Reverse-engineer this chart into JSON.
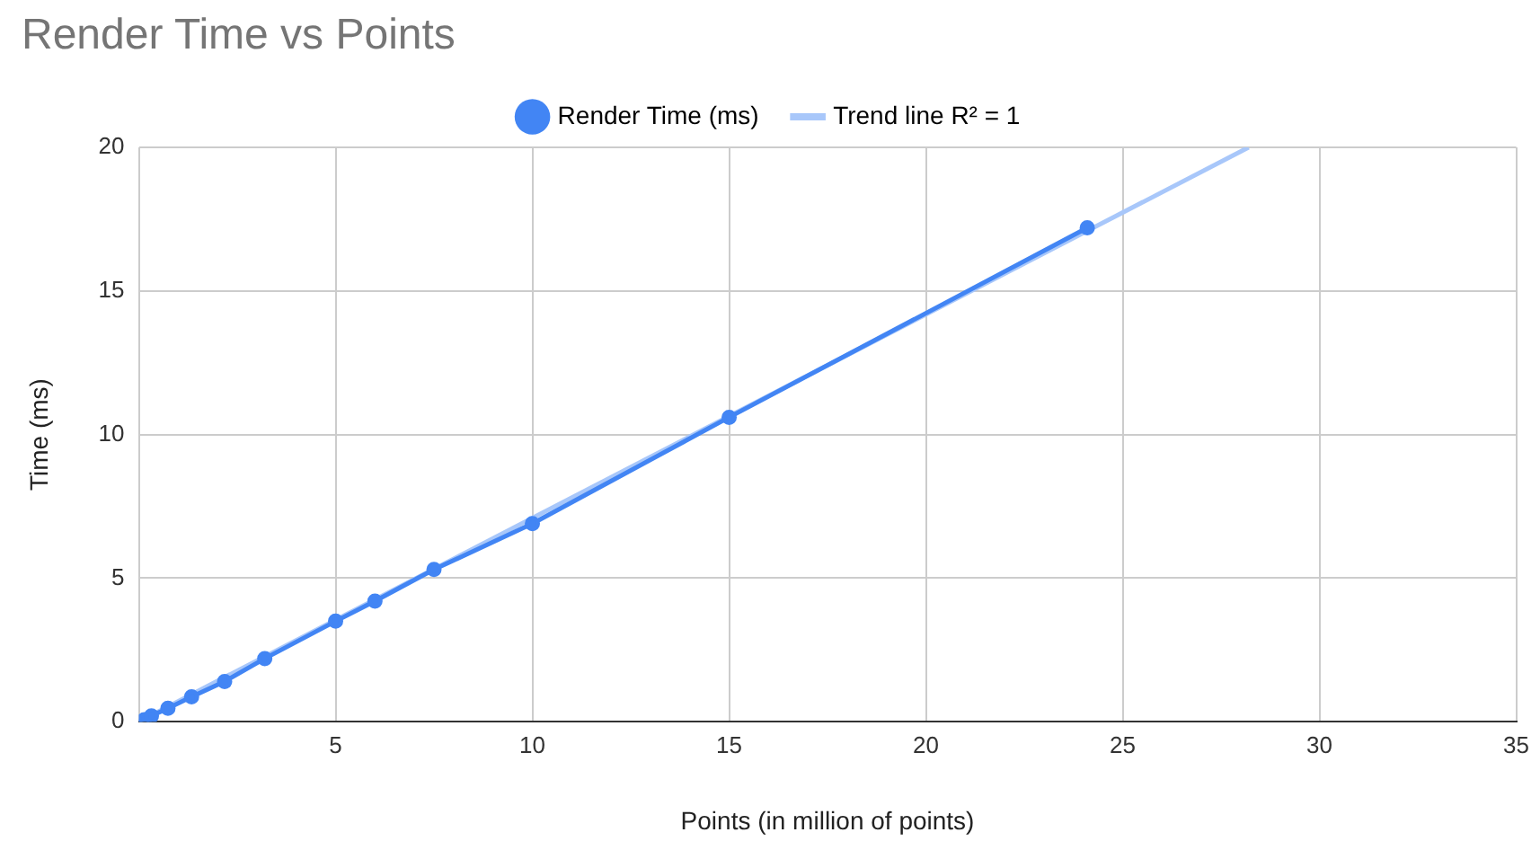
{
  "chart_data": {
    "type": "line",
    "title": "Render Time vs Points",
    "xlabel": "Points (in million of points)",
    "ylabel": "Time (ms)",
    "series": [
      {
        "name": "Render Time (ms)",
        "color": "#4285f4",
        "x": [
          0.14,
          0.32,
          0.74,
          1.34,
          2.18,
          3.2,
          5,
          6,
          7.5,
          10,
          15,
          24.1
        ],
        "values": [
          0.07,
          0.2,
          0.47,
          0.87,
          1.4,
          2.2,
          3.5,
          4.2,
          5.3,
          6.9,
          10.6,
          17.2
        ]
      },
      {
        "name": "Trend line R² = 1",
        "color": "#a8c7fa",
        "type": "line",
        "marker": "none",
        "x": [
          0,
          28.2
        ],
        "values": [
          0,
          20
        ]
      }
    ],
    "xlim": [
      0,
      35
    ],
    "xticks": [
      {
        "value": 0,
        "label": null
      },
      5,
      10,
      15,
      20,
      25,
      30,
      35
    ],
    "ylim": [
      0,
      20
    ],
    "yticks": [
      0,
      5,
      10,
      15,
      20
    ],
    "grid": true,
    "legend": "top",
    "marker": "circle",
    "line_style": "solid"
  }
}
